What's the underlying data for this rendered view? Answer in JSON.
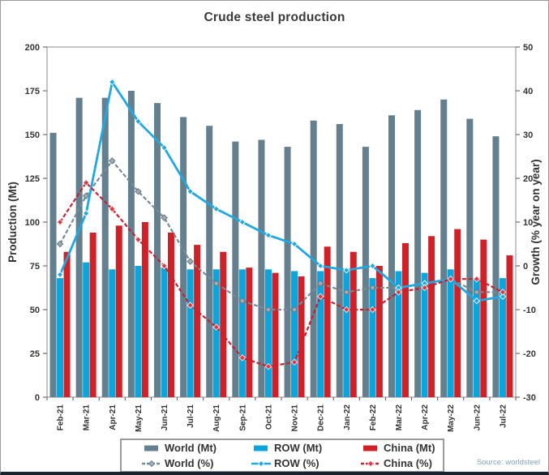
{
  "figure": {
    "title": "Crude steel production",
    "source": "Source: worldsteel"
  },
  "colors": {
    "world_bar": "#64808F",
    "row_bar": "#0AA5DD",
    "china_bar": "#D02028",
    "world_line": "#788A98",
    "row_line": "#1FA8E2",
    "china_line": "#C8202E",
    "axis_frame": "#8C8C8C",
    "tick_text": "#333333",
    "title_text": "#3A3A3A",
    "source_text": "#7FA6BD"
  },
  "chart_data": {
    "type": "bar+line",
    "title": "Crude steel production",
    "categories": [
      "Feb-21",
      "Mar-21",
      "Apr-21",
      "May-21",
      "Jun-21",
      "Jul-21",
      "Aug-21",
      "Sep-21",
      "Oct-21",
      "Nov-21",
      "Dec-21",
      "Jan-22",
      "Feb-22",
      "Mar-22",
      "Apr-22",
      "May-22",
      "Jun-22",
      "Jul-22"
    ],
    "bar_series": [
      {
        "name": "World (Mt)",
        "color": "#64808F",
        "axis": "left",
        "values": [
          151,
          171,
          171,
          175,
          168,
          160,
          155,
          146,
          147,
          143,
          158,
          156,
          143,
          161,
          164,
          170,
          159,
          149
        ]
      },
      {
        "name": "ROW (Mt)",
        "color": "#0AA5DD",
        "axis": "left",
        "values": [
          68,
          77,
          73,
          75,
          74,
          73,
          73,
          73,
          73,
          72,
          72,
          73,
          68,
          72,
          71,
          73,
          68,
          68
        ]
      },
      {
        "name": "China (Mt)",
        "color": "#D02028",
        "axis": "left",
        "values": [
          83,
          94,
          98,
          100,
          94,
          87,
          83,
          74,
          71,
          69,
          86,
          83,
          75,
          88,
          92,
          96,
          90,
          81
        ]
      }
    ],
    "line_series": [
      {
        "name": "World (%)",
        "color": "#788A98",
        "dashed": true,
        "axis": "right",
        "marker_fill": "#9DACB5",
        "marker_stroke": "#5F7380",
        "values": [
          5,
          16,
          24,
          17,
          11,
          1,
          -4,
          -8,
          -10,
          -10,
          -4,
          -6,
          -5,
          -5,
          -4,
          -3,
          -6,
          -6
        ]
      },
      {
        "name": "ROW (%)",
        "color": "#1FA8E2",
        "dashed": false,
        "axis": "right",
        "marker_fill": "#1FA8E2",
        "marker_stroke": "#FFFFFF",
        "values": [
          -2,
          12,
          42,
          33,
          27,
          17,
          13,
          10,
          7,
          5,
          0,
          -1,
          0,
          -5,
          -4,
          -3,
          -8,
          -7
        ]
      },
      {
        "name": "China (%)",
        "color": "#C8202E",
        "dashed": true,
        "axis": "right",
        "marker_fill": "#D63A45",
        "marker_stroke": "#FFE8E8",
        "values": [
          10,
          19,
          13,
          6,
          0,
          -9,
          -14,
          -21,
          -23,
          -22,
          -7,
          -10,
          -10,
          -6,
          -5,
          -3,
          -3,
          -6
        ]
      }
    ],
    "left_axis": {
      "label": "Production (Mt)",
      "min": 0,
      "max": 200,
      "step": 25
    },
    "right_axis": {
      "label": "Growth (% year on year)",
      "min": -30,
      "max": 50,
      "step": 10
    },
    "grid": false,
    "legend_position": "bottom"
  }
}
